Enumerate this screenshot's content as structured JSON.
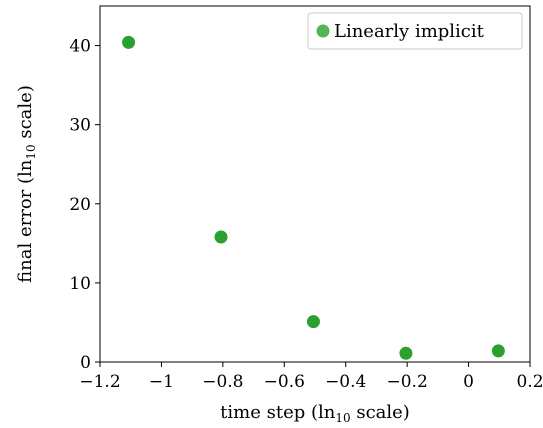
{
  "chart_data": {
    "type": "scatter",
    "title": "",
    "xlabel": "time step (ln10 scale)",
    "ylabel": "final error (ln10 scale)",
    "xlim": [
      -1.2,
      0.2
    ],
    "ylim": [
      0,
      45
    ],
    "x_ticks": [
      -1.2,
      -1.0,
      -0.8,
      -0.6,
      -0.4,
      -0.2,
      0.0,
      0.2
    ],
    "x_tick_labels": [
      "−1.2",
      "−1",
      "−0.8",
      "−0.6",
      "−0.4",
      "−0.2",
      "0",
      "0.2"
    ],
    "y_ticks": [
      0,
      10,
      20,
      30,
      40
    ],
    "y_tick_labels": [
      "0",
      "10",
      "20",
      "30",
      "40"
    ],
    "grid": false,
    "legend_position": "top-right",
    "series": [
      {
        "name": "Linearly implicit",
        "color": "#2ca02c",
        "x": [
          -1.107,
          -0.806,
          -0.505,
          -0.204,
          0.097
        ],
        "y": [
          40.4,
          15.8,
          5.1,
          1.1,
          1.4
        ]
      }
    ]
  }
}
